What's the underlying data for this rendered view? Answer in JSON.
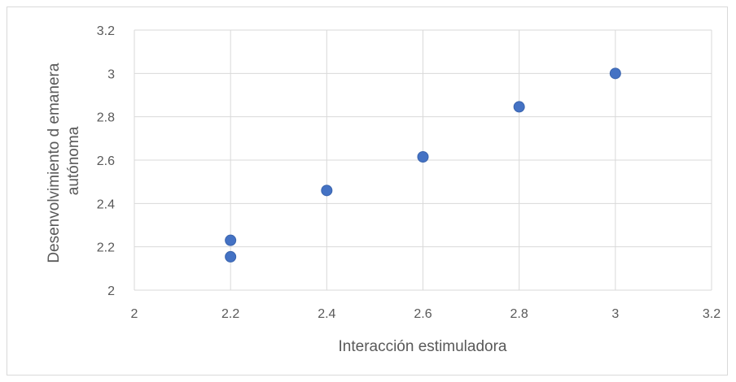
{
  "chart_data": {
    "type": "scatter",
    "xlabel": "Interacción estimuladora",
    "ylabel_lines": [
      "Desenvolvimiento d emanera",
      "autónoma"
    ],
    "xlim": [
      2,
      3.2
    ],
    "ylim": [
      2,
      3.2
    ],
    "xticks": [
      "2",
      "2.2",
      "2.4",
      "2.6",
      "2.8",
      "3",
      "3.2"
    ],
    "yticks": [
      "2",
      "2.2",
      "2.4",
      "2.6",
      "2.8",
      "3",
      "3.2"
    ],
    "grid": true,
    "marker_color": "#4472C4",
    "points": [
      {
        "x": 2.2,
        "y": 2.23
      },
      {
        "x": 2.2,
        "y": 2.154
      },
      {
        "x": 2.4,
        "y": 2.46
      },
      {
        "x": 2.6,
        "y": 2.615
      },
      {
        "x": 2.8,
        "y": 2.846
      },
      {
        "x": 3.0,
        "y": 3.0
      }
    ]
  }
}
